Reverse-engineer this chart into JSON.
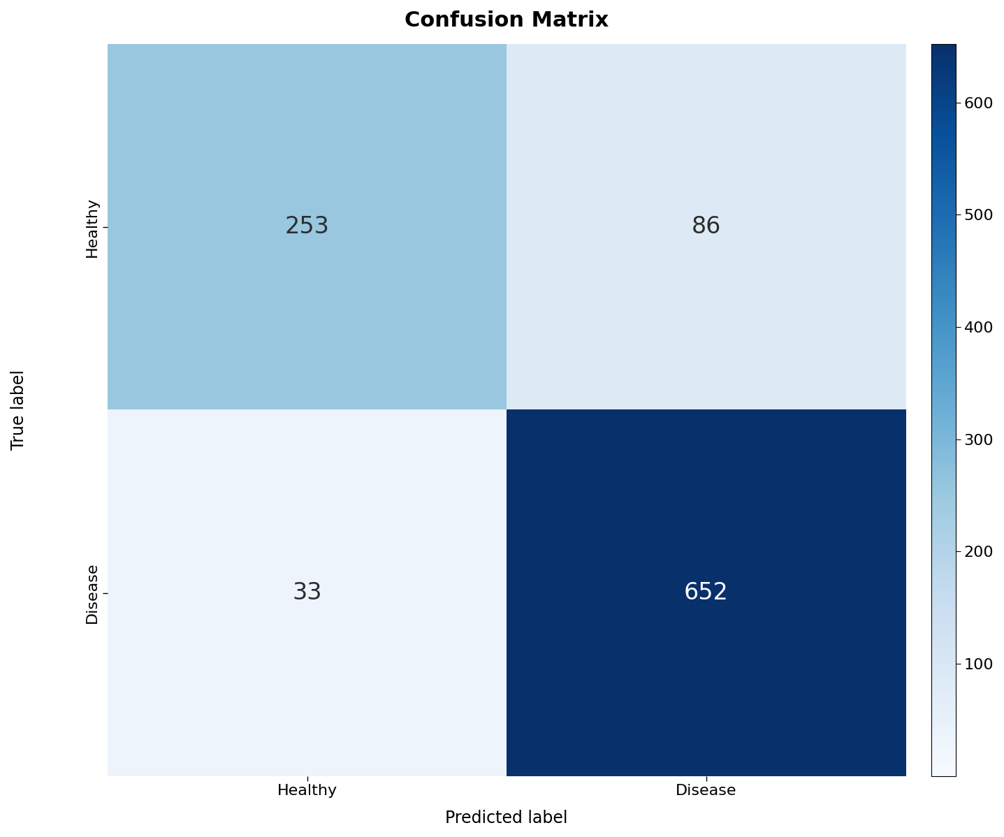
{
  "title": "Confusion Matrix",
  "matrix": [
    [
      253,
      86
    ],
    [
      33,
      652
    ]
  ],
  "class_labels": [
    "Healthy",
    "Disease"
  ],
  "xlabel": "Predicted label",
  "ylabel": "True label",
  "colormap": "Blues",
  "vmin": 0,
  "vmax": 652,
  "colorbar_ticks": [
    100,
    200,
    300,
    400,
    500,
    600
  ],
  "text_colors": {
    "light_bg": "#2d2d2d",
    "dark_bg": "#ffffff"
  },
  "title_fontsize": 22,
  "axis_label_fontsize": 17,
  "tick_label_fontsize": 16,
  "cell_text_fontsize": 24,
  "figsize": [
    14.37,
    11.98
  ],
  "dpi": 100
}
